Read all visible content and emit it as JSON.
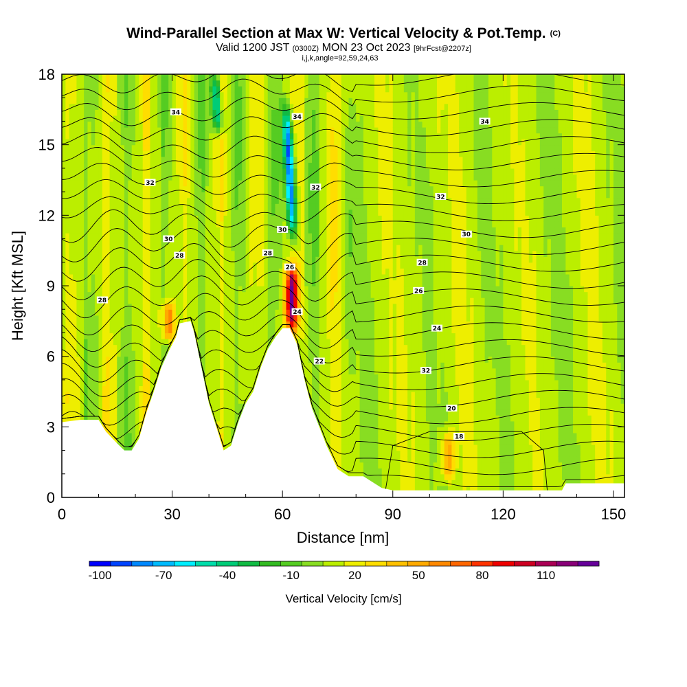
{
  "header": {
    "title": "Wind-Parallel Section at Max W: Vertical Velocity & Pot.Temp.",
    "copyright": "(C)",
    "valid_prefix": "Valid 1200 JST",
    "valid_zulu": "(0300Z)",
    "valid_date": "MON 23 Oct 2023",
    "forecast": "[9hrFcst@2207z]",
    "indices": "i,j,k,angle=92,59,24,63"
  },
  "chart_data": {
    "type": "heatmap",
    "xlabel": "Distance [nm]",
    "ylabel": "Height [Kft MSL]",
    "xlim": [
      0,
      153
    ],
    "ylim": [
      0,
      18
    ],
    "x_ticks": [
      0,
      30,
      60,
      90,
      120,
      150
    ],
    "y_ticks": [
      0,
      3,
      6,
      9,
      12,
      15,
      18
    ],
    "terrain_kft": [
      [
        0,
        3.2
      ],
      [
        5,
        3.3
      ],
      [
        10,
        3.3
      ],
      [
        12,
        2.8
      ],
      [
        15,
        2.3
      ],
      [
        17,
        2.0
      ],
      [
        19,
        2.0
      ],
      [
        21,
        2.5
      ],
      [
        23,
        3.6
      ],
      [
        25,
        4.5
      ],
      [
        27,
        5.5
      ],
      [
        29,
        6.2
      ],
      [
        31,
        6.8
      ],
      [
        32,
        7.4
      ],
      [
        35,
        7.5
      ],
      [
        36,
        7.0
      ],
      [
        38,
        5.5
      ],
      [
        40,
        4.0
      ],
      [
        42,
        3.0
      ],
      [
        44,
        2.0
      ],
      [
        46,
        2.2
      ],
      [
        48,
        3.2
      ],
      [
        50,
        4.0
      ],
      [
        52,
        4.5
      ],
      [
        54,
        5.5
      ],
      [
        56,
        6.3
      ],
      [
        58,
        6.8
      ],
      [
        60,
        7.2
      ],
      [
        62,
        7.2
      ],
      [
        64,
        6.5
      ],
      [
        66,
        5.0
      ],
      [
        68,
        3.8
      ],
      [
        70,
        3.0
      ],
      [
        72,
        2.2
      ],
      [
        75,
        1.2
      ],
      [
        78,
        0.9
      ],
      [
        82,
        0.9
      ],
      [
        85,
        0.6
      ],
      [
        87,
        0.4
      ],
      [
        90,
        0.3
      ],
      [
        100,
        0.3
      ],
      [
        110,
        0.3
      ],
      [
        120,
        0.3
      ],
      [
        136,
        0.3
      ],
      [
        137,
        0.6
      ],
      [
        153,
        0.6
      ]
    ],
    "colorbar": {
      "title": "Vertical Velocity [cm/s]",
      "levels": [
        -100,
        -90,
        -80,
        -70,
        -60,
        -50,
        -40,
        -30,
        -20,
        -10,
        0,
        10,
        20,
        30,
        40,
        50,
        60,
        70,
        80,
        90,
        100,
        110,
        120
      ],
      "tick_labels": [
        "-100",
        "-70",
        "-40",
        "-10",
        "20",
        "50",
        "80",
        "110"
      ],
      "colors": [
        "#0000ff",
        "#0044ff",
        "#0088ff",
        "#00bbff",
        "#00eeff",
        "#00ddaa",
        "#00cc77",
        "#11bb44",
        "#33bb22",
        "#55cc22",
        "#88dd22",
        "#bbee00",
        "#eeee00",
        "#ffdd00",
        "#ffc000",
        "#ffaa00",
        "#ff8800",
        "#ff6600",
        "#ff3300",
        "#ee0000",
        "#cc0022",
        "#aa0055",
        "#880077",
        "#660099"
      ]
    },
    "theta_contour_labels": [
      {
        "text": "34",
        "x": 31,
        "y": 16.4
      },
      {
        "text": "34",
        "x": 64,
        "y": 16.2
      },
      {
        "text": "34",
        "x": 115,
        "y": 16.0
      },
      {
        "text": "32",
        "x": 24,
        "y": 13.4
      },
      {
        "text": "32",
        "x": 69,
        "y": 13.2
      },
      {
        "text": "32",
        "x": 103,
        "y": 12.8
      },
      {
        "text": "30",
        "x": 29,
        "y": 11.0
      },
      {
        "text": "30",
        "x": 60,
        "y": 11.4
      },
      {
        "text": "30",
        "x": 110,
        "y": 11.2
      },
      {
        "text": "28",
        "x": 32,
        "y": 10.3
      },
      {
        "text": "28",
        "x": 56,
        "y": 10.4
      },
      {
        "text": "28",
        "x": 98,
        "y": 10.0
      },
      {
        "text": "28",
        "x": 11,
        "y": 8.4
      },
      {
        "text": "26",
        "x": 62,
        "y": 9.8
      },
      {
        "text": "26",
        "x": 97,
        "y": 8.8
      },
      {
        "text": "24",
        "x": 64,
        "y": 7.9
      },
      {
        "text": "24",
        "x": 102,
        "y": 7.2
      },
      {
        "text": "22",
        "x": 70,
        "y": 5.8
      },
      {
        "text": "32",
        "x": 99,
        "y": 5.4
      },
      {
        "text": "20",
        "x": 106,
        "y": 3.8
      },
      {
        "text": "18",
        "x": 108,
        "y": 2.6
      }
    ],
    "updrafts": [
      {
        "x": 62.5,
        "y_low": 7.4,
        "y_high": 9.5,
        "w": 115
      },
      {
        "x": 29.0,
        "y_low": 7.0,
        "y_high": 8.0,
        "w": 60
      },
      {
        "x": 105.0,
        "y_low": 1.0,
        "y_high": 2.5,
        "w": 50
      }
    ],
    "downdrafts": [
      {
        "x": 63.0,
        "y_low": 11.0,
        "y_high": 16.5,
        "w": -100
      },
      {
        "x": 42.5,
        "y_low": 15.5,
        "y_high": 18.0,
        "w": -60
      }
    ]
  }
}
